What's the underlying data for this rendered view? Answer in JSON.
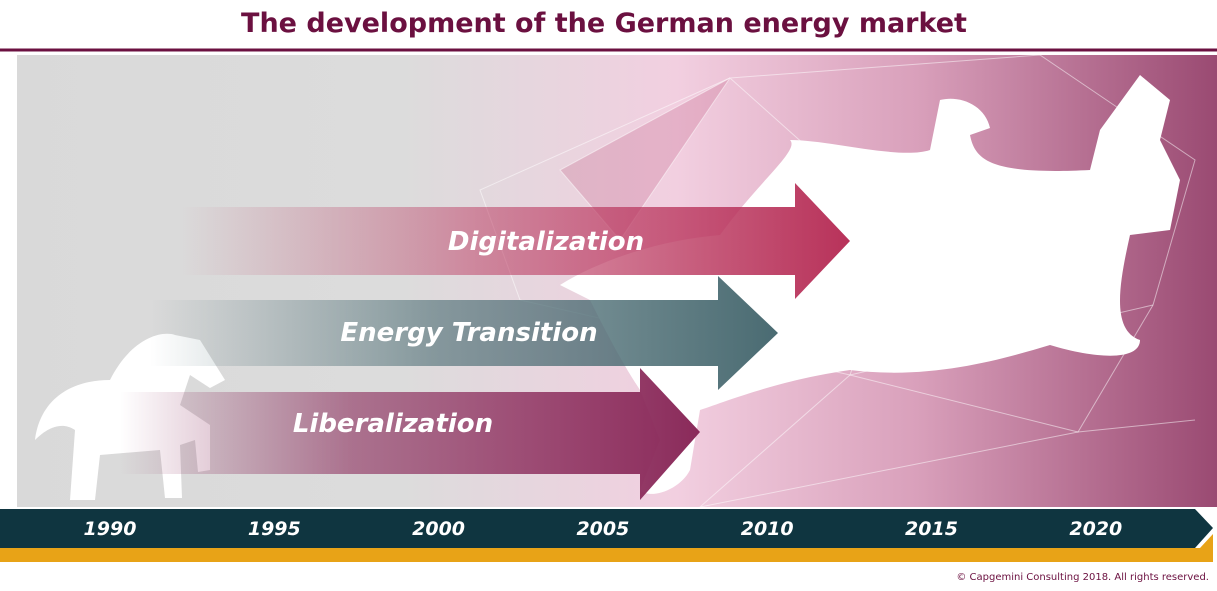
{
  "header": {
    "title": "The development of the German energy market"
  },
  "arrows": [
    {
      "label": "Digitalization"
    },
    {
      "label": "Energy Transition"
    },
    {
      "label": "Liberalization"
    }
  ],
  "timeline": {
    "years": [
      1990,
      1995,
      2000,
      2005,
      2010,
      2015,
      2020
    ]
  },
  "footer": {
    "copyright": "© Capgemini Consulting 2018. All rights reserved."
  }
}
